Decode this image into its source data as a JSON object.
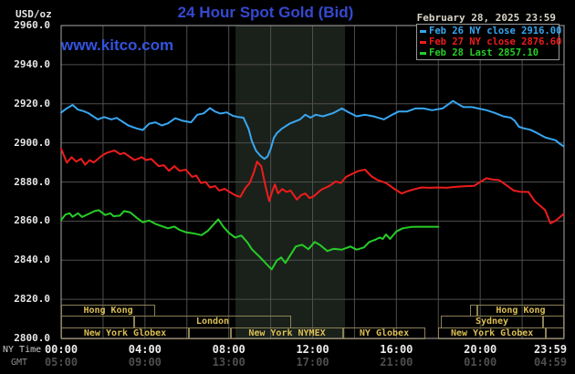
{
  "header": {
    "title": "24 Hour Spot Gold (Bid)",
    "unit": "USD/oz",
    "watermark": "www.kitco.com",
    "datetime": "February 28, 2025 23:59"
  },
  "legend": {
    "items": [
      {
        "text": "Feb 26 NY close 2916.00",
        "color": "#38a6f0"
      },
      {
        "text": "Feb 27 NY close 2876.60",
        "color": "#ee1c1c"
      },
      {
        "text": "Feb 28 Last 2857.10",
        "color": "#27cd27"
      }
    ]
  },
  "y_axis": {
    "ticks": [
      "2960.0",
      "2940.0",
      "2920.0",
      "2900.0",
      "2880.0",
      "2860.0",
      "2840.0",
      "2820.0",
      "2800.0"
    ]
  },
  "x_axis": {
    "ny_label": "NY Time",
    "gmt_label": "GMT",
    "ny_ticks": [
      "00:00",
      "04:00",
      "08:00",
      "12:00",
      "16:00",
      "20:00",
      "23:59"
    ],
    "gmt_ticks": [
      "05:00",
      "09:00",
      "13:00",
      "17:00",
      "21:00",
      "01:00",
      "04:59"
    ]
  },
  "sessions": {
    "rows": [
      [
        {
          "label": "Hong Kong",
          "t0": 0,
          "t1": 4.49
        },
        {
          "label": "",
          "t0": 19.52,
          "t1": 19.86
        },
        {
          "label": "Hong Kong",
          "t0": 19.86,
          "t1": 24
        }
      ],
      [
        {
          "label": "",
          "t0": 0,
          "t1": 3.48
        },
        {
          "label": "London",
          "t0": 3.48,
          "t1": 10.98
        },
        {
          "label": "Sydney",
          "t0": 18.12,
          "t1": 23.0
        },
        {
          "label": "",
          "t0": 23.0,
          "t1": 24
        }
      ],
      [
        {
          "label": "New York Globex",
          "t0": 0,
          "t1": 6.1
        },
        {
          "label": "",
          "t0": 6.1,
          "t1": 8.1
        },
        {
          "label": "New York NYMEX",
          "t0": 8.1,
          "t1": 13.46
        },
        {
          "label": "NY Globex",
          "t0": 13.46,
          "t1": 17.38
        },
        {
          "label": "New York Globex",
          "t0": 18.0,
          "t1": 23.13
        },
        {
          "label": "",
          "t0": 23.13,
          "t1": 24
        }
      ]
    ]
  },
  "colors": {
    "title_blue": "#3549cf",
    "kitco_blue": "#3353dc",
    "date_text": "#d8d4c6",
    "band": "#1a211a",
    "grid": "#4e4e4e",
    "plot_border": "#a9a9a9",
    "session_border": "#8c8055",
    "session_text": "#dcbf55",
    "axis_text": "#e6e6e6",
    "gmt_text": "#4e4e4e"
  },
  "chart_data": {
    "type": "line",
    "title": "24 Hour Spot Gold (Bid)",
    "ylabel": "USD/oz",
    "x_unit": "hours, NY time",
    "x_range": [
      0,
      24
    ],
    "y_range": [
      2800,
      2960
    ],
    "y_tick_step": 20,
    "x_tick_step_hours": 2,
    "grid": true,
    "legend_position": "top-right",
    "highlight_band": {
      "t_start": 8.32,
      "t_end": 13.55
    },
    "series": [
      {
        "name": "Feb 26",
        "ny_close": 2916.0,
        "color": "#38a6f0",
        "points": [
          [
            0,
            2915.5
          ],
          [
            0.25,
            2917.5
          ],
          [
            0.55,
            2919.4
          ],
          [
            0.8,
            2917
          ],
          [
            1.05,
            2916.3
          ],
          [
            1.3,
            2915.2
          ],
          [
            1.75,
            2912
          ],
          [
            2.05,
            2913.2
          ],
          [
            2.4,
            2912
          ],
          [
            2.65,
            2912.8
          ],
          [
            3.2,
            2908.9
          ],
          [
            3.6,
            2907.4
          ],
          [
            3.9,
            2906.6
          ],
          [
            4.2,
            2909.8
          ],
          [
            4.5,
            2910.5
          ],
          [
            4.8,
            2908.9
          ],
          [
            5.1,
            2910
          ],
          [
            5.45,
            2912.6
          ],
          [
            5.8,
            2911.3
          ],
          [
            6.2,
            2910.5
          ],
          [
            6.5,
            2914.4
          ],
          [
            6.8,
            2915.1
          ],
          [
            7.1,
            2917.8
          ],
          [
            7.35,
            2916
          ],
          [
            7.6,
            2915
          ],
          [
            7.9,
            2915.6
          ],
          [
            8.2,
            2913.8
          ],
          [
            8.45,
            2913.2
          ],
          [
            8.7,
            2912.9
          ],
          [
            8.95,
            2907
          ],
          [
            9.1,
            2901
          ],
          [
            9.3,
            2896
          ],
          [
            9.5,
            2893.5
          ],
          [
            9.7,
            2891.8
          ],
          [
            9.85,
            2893
          ],
          [
            10,
            2897
          ],
          [
            10.15,
            2902.5
          ],
          [
            10.3,
            2905.1
          ],
          [
            10.55,
            2907.4
          ],
          [
            10.9,
            2909.8
          ],
          [
            11.4,
            2912
          ],
          [
            11.65,
            2914.4
          ],
          [
            11.9,
            2912.9
          ],
          [
            12.15,
            2914.4
          ],
          [
            12.5,
            2913.6
          ],
          [
            13,
            2915.3
          ],
          [
            13.4,
            2917.6
          ],
          [
            13.65,
            2916
          ],
          [
            14.1,
            2913.6
          ],
          [
            14.5,
            2914.4
          ],
          [
            14.9,
            2913.6
          ],
          [
            15.4,
            2912
          ],
          [
            15.8,
            2914.4
          ],
          [
            16.1,
            2916
          ],
          [
            16.5,
            2916
          ],
          [
            16.9,
            2917.6
          ],
          [
            17.3,
            2917.6
          ],
          [
            17.7,
            2916.7
          ],
          [
            18.2,
            2917.6
          ],
          [
            18.7,
            2921.4
          ],
          [
            18.95,
            2919.8
          ],
          [
            19.2,
            2918.3
          ],
          [
            19.6,
            2918.3
          ],
          [
            19.9,
            2917.6
          ],
          [
            20.3,
            2916.7
          ],
          [
            20.7,
            2915.3
          ],
          [
            21.1,
            2913.6
          ],
          [
            21.45,
            2912.9
          ],
          [
            21.65,
            2911.3
          ],
          [
            21.85,
            2908.2
          ],
          [
            22.1,
            2907.4
          ],
          [
            22.4,
            2906.7
          ],
          [
            22.7,
            2905.1
          ],
          [
            23.1,
            2902.8
          ],
          [
            23.6,
            2901.3
          ],
          [
            23.8,
            2899.5
          ],
          [
            23.97,
            2898.3
          ]
        ]
      },
      {
        "name": "Feb 27",
        "ny_close": 2876.6,
        "color": "#ee1c1c",
        "points": [
          [
            0,
            2897
          ],
          [
            0.27,
            2889.9
          ],
          [
            0.5,
            2892.7
          ],
          [
            0.72,
            2890.4
          ],
          [
            0.95,
            2891.9
          ],
          [
            1.15,
            2888.8
          ],
          [
            1.36,
            2891.2
          ],
          [
            1.55,
            2890
          ],
          [
            1.95,
            2893.5
          ],
          [
            2.2,
            2895
          ],
          [
            2.55,
            2896.1
          ],
          [
            2.82,
            2894.2
          ],
          [
            3,
            2894.9
          ],
          [
            3.5,
            2891.2
          ],
          [
            3.85,
            2892.7
          ],
          [
            4.05,
            2891.2
          ],
          [
            4.3,
            2891.8
          ],
          [
            4.65,
            2888.1
          ],
          [
            4.9,
            2888.6
          ],
          [
            5.15,
            2885.7
          ],
          [
            5.4,
            2888.1
          ],
          [
            5.65,
            2885.7
          ],
          [
            5.95,
            2886.3
          ],
          [
            6.25,
            2882.6
          ],
          [
            6.45,
            2883.3
          ],
          [
            6.67,
            2879.5
          ],
          [
            6.9,
            2880
          ],
          [
            7.1,
            2877.2
          ],
          [
            7.35,
            2877.9
          ],
          [
            7.55,
            2875.6
          ],
          [
            7.8,
            2876.5
          ],
          [
            8.1,
            2874.5
          ],
          [
            8.35,
            2873
          ],
          [
            8.55,
            2872.4
          ],
          [
            8.8,
            2877
          ],
          [
            9,
            2879.5
          ],
          [
            9.2,
            2885
          ],
          [
            9.35,
            2890.4
          ],
          [
            9.55,
            2888
          ],
          [
            9.75,
            2878
          ],
          [
            9.93,
            2870.2
          ],
          [
            10.1,
            2876
          ],
          [
            10.2,
            2878.8
          ],
          [
            10.35,
            2874.1
          ],
          [
            10.55,
            2876.4
          ],
          [
            10.75,
            2874.9
          ],
          [
            10.95,
            2875.6
          ],
          [
            11.25,
            2871
          ],
          [
            11.45,
            2873.3
          ],
          [
            11.65,
            2874.1
          ],
          [
            11.85,
            2871.8
          ],
          [
            12.05,
            2872.6
          ],
          [
            12.4,
            2876
          ],
          [
            12.8,
            2878
          ],
          [
            13.1,
            2880.3
          ],
          [
            13.35,
            2879.5
          ],
          [
            13.6,
            2882.6
          ],
          [
            13.9,
            2884.2
          ],
          [
            14.2,
            2885.7
          ],
          [
            14.5,
            2886.3
          ],
          [
            14.8,
            2883
          ],
          [
            15.1,
            2881
          ],
          [
            15.5,
            2879.5
          ],
          [
            15.9,
            2876.5
          ],
          [
            16.25,
            2874.1
          ],
          [
            16.6,
            2875.5
          ],
          [
            16.9,
            2876.4
          ],
          [
            17.2,
            2877.2
          ],
          [
            17.6,
            2877
          ],
          [
            18,
            2877.2
          ],
          [
            18.4,
            2877
          ],
          [
            18.8,
            2877.5
          ],
          [
            19.2,
            2877.8
          ],
          [
            19.7,
            2878
          ],
          [
            20,
            2880
          ],
          [
            20.3,
            2881.9
          ],
          [
            20.6,
            2881.2
          ],
          [
            20.9,
            2881
          ],
          [
            21.3,
            2878
          ],
          [
            21.6,
            2875.6
          ],
          [
            21.9,
            2875
          ],
          [
            22.3,
            2874.9
          ],
          [
            22.6,
            2870.2
          ],
          [
            22.9,
            2867.5
          ],
          [
            23.1,
            2865.6
          ],
          [
            23.35,
            2858.8
          ],
          [
            23.6,
            2860.2
          ],
          [
            23.8,
            2862
          ],
          [
            23.97,
            2863.6
          ]
        ]
      },
      {
        "name": "Feb 28",
        "last": 2857.1,
        "color": "#27cd27",
        "points": [
          [
            0,
            2860.5
          ],
          [
            0.2,
            2863.3
          ],
          [
            0.4,
            2864
          ],
          [
            0.55,
            2862.2
          ],
          [
            0.8,
            2864
          ],
          [
            1,
            2862.1
          ],
          [
            1.6,
            2865.1
          ],
          [
            1.8,
            2865.6
          ],
          [
            2.1,
            2863.1
          ],
          [
            2.35,
            2864
          ],
          [
            2.5,
            2862.5
          ],
          [
            2.8,
            2862.8
          ],
          [
            3,
            2865.1
          ],
          [
            3.3,
            2864.4
          ],
          [
            3.6,
            2861.7
          ],
          [
            3.9,
            2859.4
          ],
          [
            4.2,
            2860.3
          ],
          [
            4.5,
            2858.6
          ],
          [
            4.8,
            2857.4
          ],
          [
            5.1,
            2856.3
          ],
          [
            5.4,
            2857.2
          ],
          [
            5.65,
            2855.5
          ],
          [
            5.95,
            2854.3
          ],
          [
            6.3,
            2853.8
          ],
          [
            6.7,
            2852.8
          ],
          [
            7,
            2855
          ],
          [
            7.3,
            2858.6
          ],
          [
            7.5,
            2860.9
          ],
          [
            7.75,
            2857
          ],
          [
            8,
            2854
          ],
          [
            8.3,
            2851.6
          ],
          [
            8.6,
            2852.6
          ],
          [
            8.9,
            2849
          ],
          [
            9.1,
            2845.6
          ],
          [
            9.5,
            2841.4
          ],
          [
            9.8,
            2838
          ],
          [
            10.05,
            2835.3
          ],
          [
            10.3,
            2840
          ],
          [
            10.5,
            2841.4
          ],
          [
            10.7,
            2838.6
          ],
          [
            11.2,
            2847
          ],
          [
            11.5,
            2847.9
          ],
          [
            11.8,
            2845.6
          ],
          [
            12.1,
            2849.3
          ],
          [
            12.35,
            2847.8
          ],
          [
            12.7,
            2844.7
          ],
          [
            13,
            2845.8
          ],
          [
            13.4,
            2845.4
          ],
          [
            13.8,
            2847
          ],
          [
            14.1,
            2845.4
          ],
          [
            14.45,
            2846.5
          ],
          [
            14.7,
            2849.3
          ],
          [
            15,
            2850.5
          ],
          [
            15.2,
            2851.6
          ],
          [
            15.35,
            2850.9
          ],
          [
            15.5,
            2853.2
          ],
          [
            15.7,
            2850.9
          ],
          [
            16,
            2854.7
          ],
          [
            16.3,
            2856.3
          ],
          [
            16.7,
            2857
          ],
          [
            16.95,
            2857.1
          ],
          [
            18,
            2857.1
          ]
        ]
      }
    ]
  }
}
